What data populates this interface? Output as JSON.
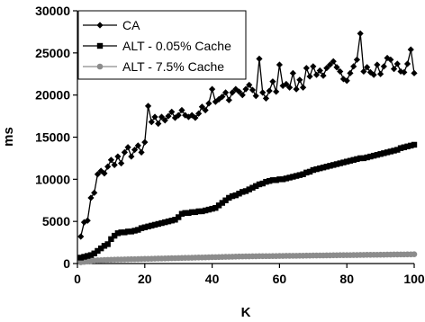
{
  "chart_data": {
    "type": "line",
    "title": "",
    "xlabel": "K",
    "ylabel": "ms",
    "xlim": [
      0,
      100
    ],
    "ylim": [
      0,
      30000
    ],
    "x_ticks": [
      "0",
      "20",
      "40",
      "60",
      "80",
      "100"
    ],
    "y_ticks": [
      "0",
      "5000",
      "10000",
      "15000",
      "20000",
      "25000",
      "30000"
    ],
    "grid": false,
    "legend_position": "top-left",
    "series": [
      {
        "name": "CA",
        "color": "#000000",
        "marker": "diamond",
        "x": [
          1,
          2,
          3,
          4,
          5,
          6,
          7,
          8,
          9,
          10,
          11,
          12,
          13,
          14,
          15,
          16,
          17,
          18,
          19,
          20,
          21,
          22,
          23,
          24,
          25,
          26,
          27,
          28,
          29,
          30,
          31,
          32,
          33,
          34,
          35,
          36,
          37,
          38,
          39,
          40,
          41,
          42,
          43,
          44,
          45,
          46,
          47,
          48,
          49,
          50,
          51,
          52,
          53,
          54,
          55,
          56,
          57,
          58,
          59,
          60,
          61,
          62,
          63,
          64,
          65,
          66,
          67,
          68,
          69,
          70,
          71,
          72,
          73,
          74,
          75,
          76,
          77,
          78,
          79,
          80,
          81,
          82,
          83,
          84,
          85,
          86,
          87,
          88,
          89,
          90,
          91,
          92,
          93,
          94,
          95,
          96,
          97,
          98,
          99,
          100
        ],
        "y": [
          3200,
          4900,
          5100,
          7800,
          8400,
          10600,
          11000,
          10700,
          11500,
          12300,
          11700,
          12700,
          11900,
          13200,
          13800,
          12700,
          13500,
          14000,
          13200,
          14400,
          18700,
          16800,
          17400,
          16600,
          17400,
          17000,
          17500,
          18000,
          17300,
          17600,
          18200,
          17600,
          17400,
          17600,
          17300,
          17800,
          18600,
          18200,
          19000,
          20700,
          19200,
          19500,
          19800,
          20300,
          19400,
          20300,
          20700,
          20400,
          20000,
          20700,
          21200,
          20600,
          19900,
          24300,
          20300,
          19600,
          20500,
          21600,
          20400,
          23600,
          21100,
          21300,
          20900,
          22600,
          20700,
          21800,
          20900,
          23200,
          22200,
          23400,
          22400,
          22900,
          22300,
          23200,
          23600,
          24000,
          23300,
          22800,
          21900,
          21700,
          22600,
          23400,
          24200,
          27300,
          22800,
          23300,
          22700,
          22400,
          23600,
          22500,
          23400,
          24400,
          24200,
          23100,
          23700,
          22800,
          22700,
          23700,
          25400,
          22600
        ]
      },
      {
        "name": "ALT - 0.05% Cache",
        "color": "#000000",
        "marker": "square",
        "x": [
          1,
          2,
          3,
          4,
          5,
          6,
          7,
          8,
          9,
          10,
          11,
          12,
          13,
          14,
          15,
          16,
          17,
          18,
          19,
          20,
          21,
          22,
          23,
          24,
          25,
          26,
          27,
          28,
          29,
          30,
          31,
          32,
          33,
          34,
          35,
          36,
          37,
          38,
          39,
          40,
          41,
          42,
          43,
          44,
          45,
          46,
          47,
          48,
          49,
          50,
          51,
          52,
          53,
          54,
          55,
          56,
          57,
          58,
          59,
          60,
          61,
          62,
          63,
          64,
          65,
          66,
          67,
          68,
          69,
          70,
          71,
          72,
          73,
          74,
          75,
          76,
          77,
          78,
          79,
          80,
          81,
          82,
          83,
          84,
          85,
          86,
          87,
          88,
          89,
          90,
          91,
          92,
          93,
          94,
          95,
          96,
          97,
          98,
          99,
          100
        ],
        "y": [
          700,
          800,
          900,
          1000,
          1200,
          1500,
          1800,
          2100,
          2300,
          2900,
          3300,
          3600,
          3700,
          3700,
          3800,
          3800,
          3900,
          4000,
          4200,
          4300,
          4400,
          4500,
          4600,
          4700,
          4800,
          4900,
          5000,
          5100,
          5200,
          5500,
          5900,
          6000,
          6000,
          6100,
          6100,
          6200,
          6200,
          6300,
          6400,
          6500,
          6600,
          6900,
          7200,
          7500,
          7800,
          8000,
          8100,
          8300,
          8500,
          8600,
          8800,
          9000,
          9200,
          9400,
          9500,
          9700,
          9800,
          9900,
          9900,
          10000,
          10000,
          10100,
          10200,
          10300,
          10400,
          10500,
          10600,
          10800,
          10900,
          11100,
          11200,
          11300,
          11400,
          11500,
          11600,
          11700,
          11800,
          11900,
          12000,
          12100,
          12200,
          12300,
          12400,
          12500,
          12500,
          12600,
          12700,
          12800,
          12900,
          13000,
          13100,
          13200,
          13300,
          13400,
          13500,
          13700,
          13800,
          13900,
          14000,
          14100
        ]
      },
      {
        "name": "ALT - 7.5% Cache",
        "color": "#8c8c8c",
        "marker": "circle",
        "x": [
          1,
          2,
          3,
          4,
          5,
          6,
          7,
          8,
          9,
          10,
          11,
          12,
          13,
          14,
          15,
          16,
          17,
          18,
          19,
          20,
          21,
          22,
          23,
          24,
          25,
          26,
          27,
          28,
          29,
          30,
          31,
          32,
          33,
          34,
          35,
          36,
          37,
          38,
          39,
          40,
          41,
          42,
          43,
          44,
          45,
          46,
          47,
          48,
          49,
          50,
          51,
          52,
          53,
          54,
          55,
          56,
          57,
          58,
          59,
          60,
          61,
          62,
          63,
          64,
          65,
          66,
          67,
          68,
          69,
          70,
          71,
          72,
          73,
          74,
          75,
          76,
          77,
          78,
          79,
          80,
          81,
          82,
          83,
          84,
          85,
          86,
          87,
          88,
          89,
          90,
          91,
          92,
          93,
          94,
          95,
          96,
          97,
          98,
          99,
          100
        ],
        "y": [
          150,
          200,
          250,
          300,
          350,
          380,
          400,
          420,
          440,
          450,
          460,
          470,
          480,
          490,
          500,
          510,
          520,
          530,
          540,
          550,
          560,
          570,
          580,
          590,
          600,
          610,
          620,
          630,
          640,
          650,
          660,
          670,
          680,
          690,
          700,
          710,
          720,
          730,
          740,
          750,
          760,
          770,
          780,
          790,
          800,
          810,
          820,
          830,
          840,
          850,
          850,
          860,
          860,
          870,
          870,
          880,
          880,
          890,
          890,
          900,
          900,
          910,
          910,
          920,
          920,
          930,
          930,
          940,
          940,
          950,
          950,
          960,
          960,
          970,
          970,
          980,
          980,
          990,
          990,
          1000,
          1000,
          1010,
          1010,
          1020,
          1020,
          1030,
          1030,
          1040,
          1040,
          1050,
          1050,
          1060,
          1060,
          1070,
          1070,
          1080,
          1080,
          1090,
          1090,
          1100
        ]
      }
    ]
  }
}
